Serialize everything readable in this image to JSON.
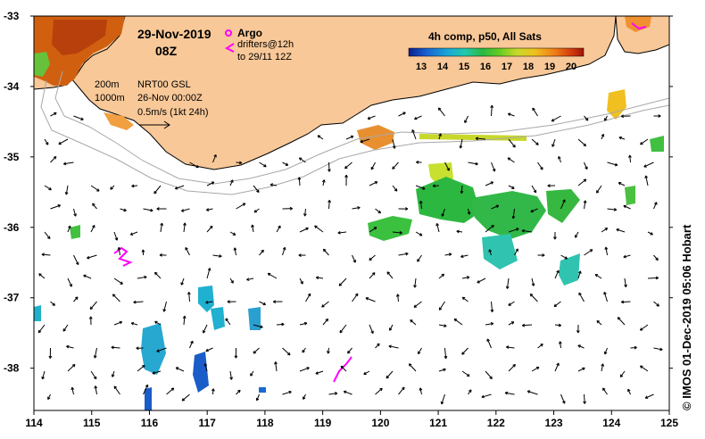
{
  "header": {
    "date": "29-Nov-2019",
    "time": "08Z",
    "argo_label": "Argo",
    "drifters_label": "drifters@12h",
    "drifters_until": "to 29/11 12Z",
    "composite_label": "4h comp, p50, All Sats"
  },
  "colorbar": {
    "ticks": [
      "13",
      "14",
      "15",
      "16",
      "17",
      "18",
      "19",
      "20"
    ],
    "colors": [
      "#0a1f8f",
      "#1a5fd0",
      "#1aa6d6",
      "#22c8b0",
      "#29b843",
      "#66cc22",
      "#c8d82a",
      "#f0c020",
      "#ee7a14",
      "#d23a10",
      "#a01408"
    ]
  },
  "info": {
    "isobath_200": "200m",
    "isobath_1000": "1000m",
    "product": "NRT00 GSL",
    "product_date": "26-Nov 00:00Z",
    "scale": "0.5m/s (1kt 24h)"
  },
  "axes": {
    "x_ticks": [
      "114",
      "115",
      "116",
      "117",
      "118",
      "119",
      "120",
      "121",
      "122",
      "123",
      "124",
      "125"
    ],
    "y_ticks": [
      "-33",
      "-34",
      "-35",
      "-36",
      "-37",
      "-38"
    ],
    "lon_range": [
      114,
      125
    ],
    "lat_range": [
      -38.6,
      -33
    ]
  },
  "credit": "© IMOS 01-Dec-2019 05:06 Hobart",
  "colors": {
    "land": "#f8c898",
    "frame": "#000000",
    "isobath": "#a0a0a0",
    "drifter": "#ff00ff"
  }
}
